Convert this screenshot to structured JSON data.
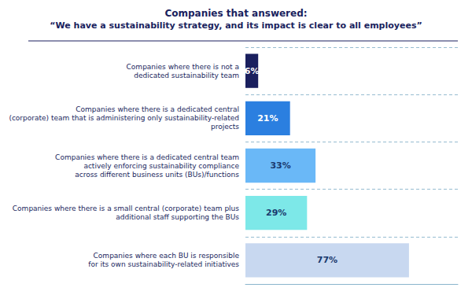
{
  "chart_data": {
    "type": "bar",
    "orientation": "horizontal",
    "title": "Companies that answered:",
    "subtitle": "“We have a sustainability strategy, and its impact is clear to all employees”",
    "categories": [
      "Companies where there is not a\ndedicated sustainability team",
      "Companies where there is a dedicated central\n(corporate) team that is administering only sustainability-related\nprojects",
      "Companies where there is a dedicated central team\nactively enforcing sustainability compliance\nacross different business units (BUs)/functions",
      "Companies where there is a small central (corporate) team plus\nadditional staff supporting the BUs",
      "Companies where each BU is responsible\nfor its own sustainability-related initiatives"
    ],
    "values": [
      6,
      21,
      33,
      29,
      77
    ],
    "value_labels": [
      "6%",
      "21%",
      "33%",
      "29%",
      "77%"
    ],
    "data_labels": true,
    "colors": [
      "#1a1f5e",
      "#2b7fe0",
      "#6ab8f7",
      "#7de8e8",
      "#c8d8f0"
    ],
    "xlim": [
      0,
      100
    ],
    "tick_labels": "y",
    "grid": true
  }
}
